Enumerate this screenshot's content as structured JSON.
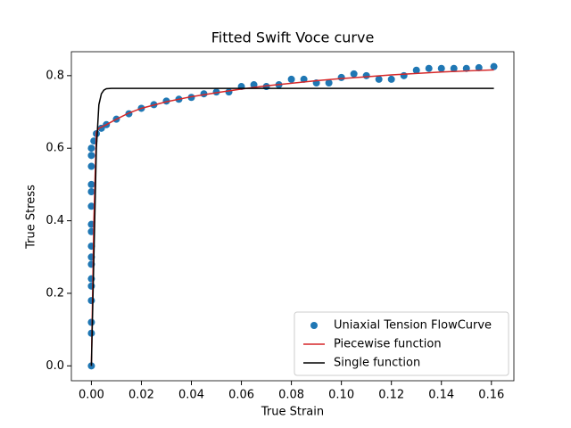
{
  "chart_data": {
    "type": "scatter",
    "title": "Fitted Swift Voce curve",
    "xlabel": "True Strain",
    "ylabel": "True Stress",
    "xlim": [
      -0.008,
      0.169
    ],
    "ylim": [
      -0.041,
      0.866
    ],
    "xticks": [
      {
        "value": 0,
        "label": "0.00"
      },
      0.02,
      0.04,
      0.06,
      0.08,
      {
        "value": 0.1,
        "label": "0.10"
      },
      0.12,
      0.14,
      0.16
    ],
    "yticks": [
      {
        "value": 0,
        "label": "0.0"
      },
      0.2,
      0.4,
      0.6,
      0.8
    ],
    "legend": "lower right",
    "series": [
      {
        "name": "Uniaxial Tension FlowCurve",
        "type": "scatter",
        "color": "#1f77b4",
        "x": [
          0,
          0,
          0,
          0,
          0,
          0,
          0,
          0,
          0,
          0,
          0,
          0,
          0,
          0,
          0,
          0,
          0,
          0.001,
          0.002,
          0.004,
          0.006,
          0.01,
          0.015,
          0.02,
          0.025,
          0.03,
          0.035,
          0.04,
          0.045,
          0.05,
          0.055,
          0.06,
          0.065,
          0.07,
          0.075,
          0.08,
          0.085,
          0.09,
          0.095,
          0.1,
          0.105,
          0.11,
          0.115,
          0.12,
          0.125,
          0.13,
          0.135,
          0.14,
          0.145,
          0.15,
          0.155,
          0.161
        ],
        "values": [
          0,
          0.09,
          0.12,
          0.18,
          0.22,
          0.24,
          0.28,
          0.3,
          0.33,
          0.37,
          0.39,
          0.44,
          0.48,
          0.5,
          0.55,
          0.58,
          0.6,
          0.62,
          0.64,
          0.655,
          0.665,
          0.68,
          0.695,
          0.71,
          0.72,
          0.73,
          0.735,
          0.74,
          0.75,
          0.755,
          0.755,
          0.77,
          0.775,
          0.77,
          0.775,
          0.79,
          0.79,
          0.78,
          0.78,
          0.795,
          0.805,
          0.8,
          0.79,
          0.79,
          0.8,
          0.815,
          0.82,
          0.82,
          0.82,
          0.82,
          0.822,
          0.825
        ]
      },
      {
        "name": "Piecewise function",
        "type": "line",
        "color": "#d62728",
        "x": [
          0,
          0.001,
          0.002,
          0.003,
          0.006,
          0.01,
          0.015,
          0.02,
          0.03,
          0.04,
          0.05,
          0.06,
          0.07,
          0.08,
          0.09,
          0.1,
          0.11,
          0.12,
          0.13,
          0.14,
          0.15,
          0.161
        ],
        "values": [
          0,
          0.4,
          0.645,
          0.655,
          0.665,
          0.68,
          0.697,
          0.71,
          0.728,
          0.742,
          0.753,
          0.763,
          0.772,
          0.779,
          0.786,
          0.792,
          0.797,
          0.802,
          0.806,
          0.81,
          0.813,
          0.816
        ]
      },
      {
        "name": "Single function",
        "type": "line",
        "color": "#000000",
        "x": [
          0,
          0.001,
          0.002,
          0.003,
          0.004,
          0.005,
          0.006,
          0.008,
          0.02,
          0.05,
          0.1,
          0.161
        ],
        "values": [
          0,
          0.3,
          0.6,
          0.72,
          0.75,
          0.76,
          0.764,
          0.765,
          0.765,
          0.765,
          0.765,
          0.765
        ]
      }
    ]
  }
}
